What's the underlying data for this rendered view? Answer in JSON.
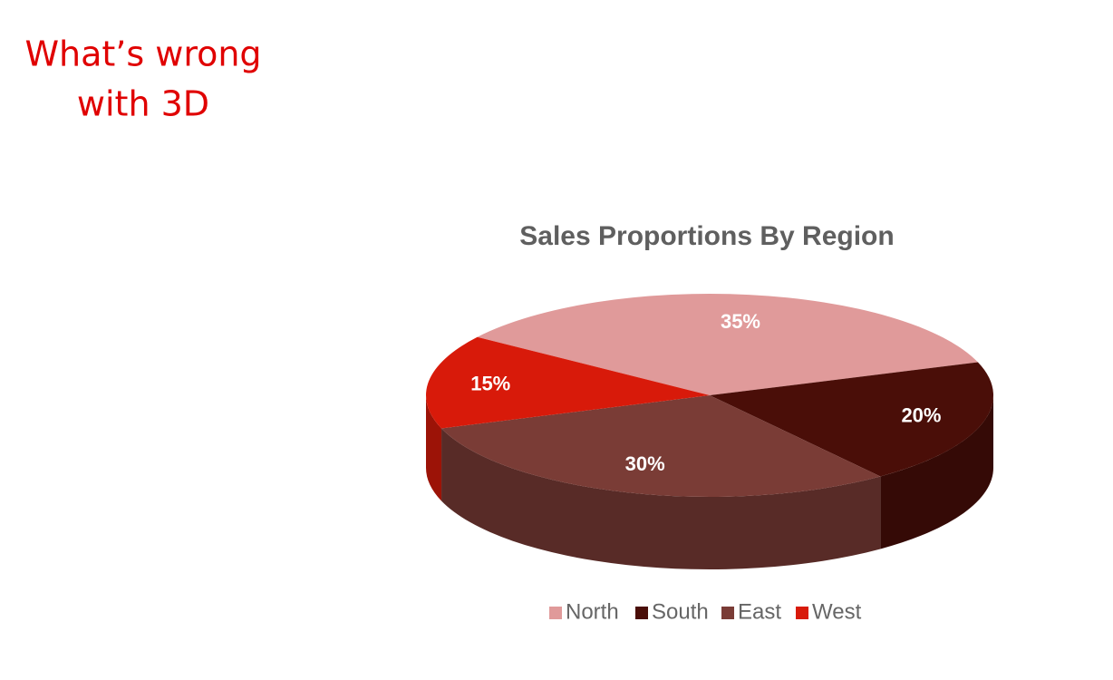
{
  "heading": [
    "What’s wrong",
    "with 3D"
  ],
  "chart_data": {
    "type": "pie3d",
    "title": "Sales Proportions By Region",
    "categories": [
      "North",
      "South",
      "East",
      "West"
    ],
    "values": [
      35,
      20,
      30,
      15
    ],
    "value_labels": [
      "35%",
      "20%",
      "30%",
      "15%"
    ],
    "colors": [
      "#e09a9a",
      "#4a0e08",
      "#7a3c36",
      "#d81a0a"
    ],
    "legend": "bottom"
  }
}
